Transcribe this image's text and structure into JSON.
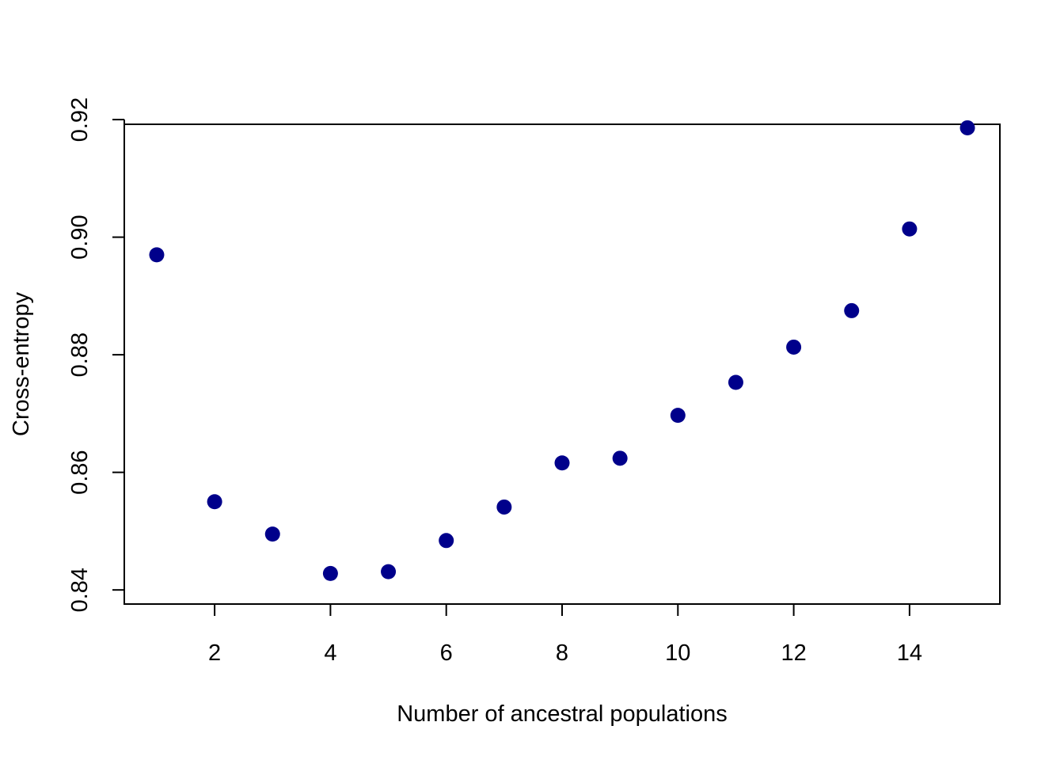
{
  "chart_data": {
    "type": "scatter",
    "title": "",
    "xlabel": "Number of ancestral populations",
    "ylabel": "Cross-entropy",
    "x": [
      1,
      2,
      3,
      4,
      5,
      6,
      7,
      8,
      9,
      10,
      11,
      12,
      13,
      14,
      15
    ],
    "y": [
      0.897,
      0.855,
      0.8495,
      0.8428,
      0.8431,
      0.8484,
      0.8541,
      0.8616,
      0.8624,
      0.8697,
      0.8753,
      0.8813,
      0.8875,
      0.9014,
      0.9186
    ],
    "xlim": [
      0.44,
      15.56
    ],
    "ylim": [
      0.8376,
      0.9192
    ],
    "xticks": [
      2,
      4,
      6,
      8,
      10,
      12,
      14
    ],
    "xtick_labels": [
      "2",
      "4",
      "6",
      "8",
      "10",
      "12",
      "14"
    ],
    "yticks": [
      0.84,
      0.86,
      0.88,
      0.9,
      0.92
    ],
    "ytick_labels": [
      "0.84",
      "0.86",
      "0.88",
      "0.90",
      "0.92"
    ],
    "grid": false,
    "legend": "none",
    "marker_color": "#00008B"
  }
}
